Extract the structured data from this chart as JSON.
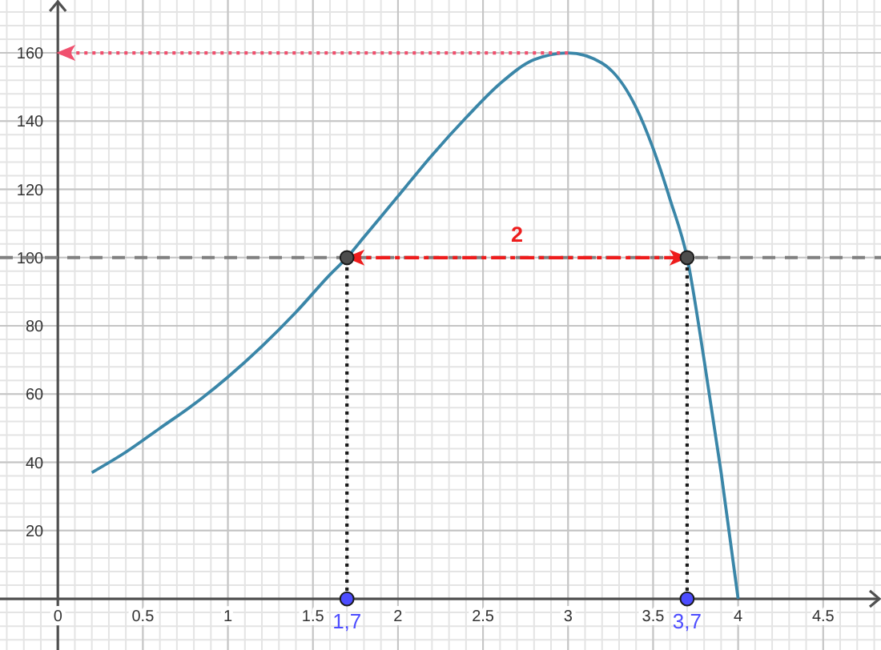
{
  "chart_data": {
    "type": "line",
    "xlim": [
      -0.34,
      4.84
    ],
    "ylim": [
      -15,
      175.5
    ],
    "xticks": [
      {
        "value": 0,
        "label": "0"
      },
      0.5,
      1,
      1.5,
      2,
      2.5,
      3,
      3.5,
      4,
      4.5
    ],
    "yticks": [
      20,
      40,
      60,
      80,
      100,
      120,
      140,
      160
    ],
    "grid": true,
    "series": [
      {
        "color": "#3a86a8",
        "x": [
          0.2,
          0.4,
          0.6,
          0.8,
          1.0,
          1.2,
          1.4,
          1.6,
          1.7,
          1.8,
          2.0,
          2.2,
          2.4,
          2.6,
          2.8,
          3.0,
          3.2,
          3.4,
          3.5,
          3.6,
          3.7,
          3.8,
          3.9,
          4.0
        ],
        "values": [
          37,
          43,
          50,
          57,
          65,
          74,
          84,
          95,
          100,
          106,
          118,
          130,
          141,
          151,
          158,
          160,
          157,
          144,
          132,
          117,
          100,
          70,
          37,
          0
        ]
      },
      {
        "color": "#1a1a1a",
        "line_style": "dotted",
        "x": [
          1.7,
          1.7
        ],
        "values": [
          0,
          100
        ]
      },
      {
        "color": "#1a1a1a",
        "line_style": "dotted",
        "x": [
          3.7,
          3.7
        ],
        "values": [
          0,
          100
        ]
      },
      {
        "color": "#f0506e",
        "line_style": "dotted",
        "x": [
          3,
          0
        ],
        "values": [
          160,
          160
        ]
      },
      {
        "color": "#ee1c1c",
        "line_style": "dashed",
        "x": [
          1.7,
          3.7
        ],
        "values": [
          100,
          100
        ]
      },
      {
        "type": "scatter",
        "color": "#4d4d4d",
        "marker": "circle",
        "x": [
          1.7,
          3.7
        ],
        "values": [
          100,
          100
        ]
      },
      {
        "type": "scatter",
        "color": "#4d4dff",
        "marker": "circle",
        "x": [
          1.7,
          3.7
        ],
        "values": [
          0,
          0
        ]
      }
    ],
    "ref_lines": [
      {
        "axis": "y",
        "value": 100,
        "color": "#808080",
        "line_style": "dashed"
      }
    ],
    "annotations": [
      {
        "text": "2",
        "x": 2.7,
        "y": 100
      },
      {
        "text": "1,7",
        "x": 1.7,
        "y": 0
      },
      {
        "text": "3,7",
        "x": 3.7,
        "y": 0
      }
    ]
  }
}
